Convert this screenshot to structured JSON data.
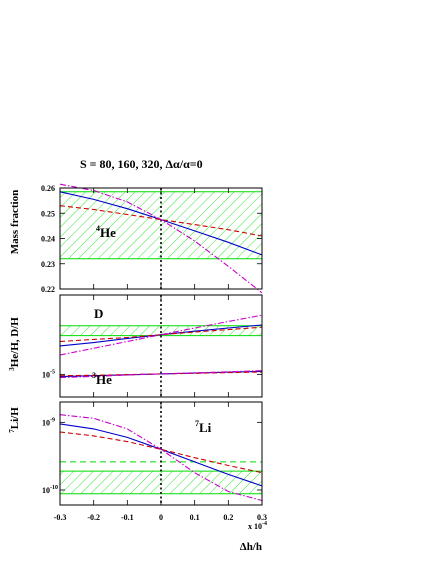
{
  "figure": {
    "title": "S = 80, 160, 320, Δα/α=0"
  },
  "shared_x": {
    "label": "Δh/h",
    "multiplier": "x 10",
    "multiplier_exp": "-4",
    "range": [
      -0.3,
      0.3
    ],
    "ticks": [
      -0.3,
      -0.2,
      -0.1,
      0,
      0.1,
      0.2,
      0.3
    ],
    "tick_labels": [
      "-0.3",
      "-0.2",
      "-0.1",
      "0",
      "0.1",
      "0.2",
      "0.3"
    ]
  },
  "colors": {
    "s80": "#0000cc",
    "s160": "#cc0000",
    "s320": "#cc00cc",
    "band": "#00dd00",
    "zero_line": "#000000"
  },
  "chart_data": [
    {
      "id": "helium4",
      "type": "line",
      "ylabel": "Mass fraction",
      "yscale": "linear",
      "ylim": [
        0.22,
        0.26
      ],
      "ticks": [
        0.22,
        0.23,
        0.24,
        0.25,
        0.26
      ],
      "tick_labels": [
        "0.22",
        "0.23",
        "0.24",
        "0.25",
        "0.26"
      ],
      "annotation": {
        "base": "He",
        "sup": "4"
      },
      "observed_band": [
        0.232,
        0.2585
      ],
      "x": [
        -0.3,
        -0.2,
        -0.1,
        0,
        0.1,
        0.2,
        0.3
      ],
      "series": [
        {
          "style": "solid",
          "color": "#0000cc",
          "values": [
            0.2585,
            0.2555,
            0.2518,
            0.2475,
            0.243,
            0.2385,
            0.2335
          ]
        },
        {
          "style": "dashed",
          "color": "#cc0000",
          "values": [
            0.253,
            0.2515,
            0.2495,
            0.2475,
            0.2455,
            0.2435,
            0.241
          ]
        },
        {
          "style": "dashdot",
          "color": "#cc00cc",
          "values": [
            0.2615,
            0.259,
            0.2545,
            0.2475,
            0.239,
            0.229,
            0.2185
          ]
        }
      ]
    },
    {
      "id": "deuterium-helium3",
      "type": "line",
      "ylabel": "He/H, D/H",
      "ylabel_sup": "3",
      "yscale": "log",
      "ylim": [
        6e-06,
        6e-05
      ],
      "ticks": [
        1e-05
      ],
      "tick_labels": [
        "10"
      ],
      "tick_label_exps": [
        "-5"
      ],
      "annotations": [
        {
          "base": "D",
          "sup": ""
        },
        {
          "base": "He",
          "sup": "3"
        }
      ],
      "observed_band": [
        2.4e-05,
        3e-05
      ],
      "x": [
        -0.3,
        -0.2,
        -0.1,
        0,
        0.1,
        0.2,
        0.3
      ],
      "series": [
        {
          "group": "D",
          "style": "solid",
          "color": "#0000cc",
          "values": [
            1.9e-05,
            2.05e-05,
            2.25e-05,
            2.45e-05,
            2.65e-05,
            2.85e-05,
            3.05e-05
          ]
        },
        {
          "group": "D",
          "style": "dashed",
          "color": "#cc0000",
          "values": [
            2.1e-05,
            2.2e-05,
            2.3e-05,
            2.45e-05,
            2.6e-05,
            2.75e-05,
            2.9e-05
          ]
        },
        {
          "group": "D",
          "style": "dashdot",
          "color": "#cc00cc",
          "values": [
            1.55e-05,
            1.8e-05,
            2.1e-05,
            2.45e-05,
            2.85e-05,
            3.3e-05,
            3.8e-05
          ]
        },
        {
          "group": "He3",
          "style": "solid",
          "color": "#0000cc",
          "values": [
            9.5e-06,
            9.7e-06,
            9.9e-06,
            1.01e-05,
            1.03e-05,
            1.05e-05,
            1.07e-05
          ]
        },
        {
          "group": "He3",
          "style": "dashed",
          "color": "#cc0000",
          "values": [
            9.7e-06,
            9.8e-06,
            9.95e-06,
            1.01e-05,
            1.025e-05,
            1.04e-05,
            1.055e-05
          ]
        },
        {
          "group": "He3",
          "style": "dashdot",
          "color": "#cc00cc",
          "values": [
            9.3e-06,
            9.55e-06,
            9.85e-06,
            1.01e-05,
            1.035e-05,
            1.06e-05,
            1.09e-05
          ]
        }
      ]
    },
    {
      "id": "lithium7",
      "type": "line",
      "ylabel": "Li/H",
      "ylabel_sup": "7",
      "yscale": "log",
      "ylim": [
        6e-11,
        2e-09
      ],
      "ticks": [
        1e-09,
        1e-10
      ],
      "tick_labels": [
        "10",
        "10"
      ],
      "tick_label_exps": [
        "-9",
        "-10"
      ],
      "annotation": {
        "base": "Li",
        "sup": "7"
      },
      "observed_band": [
        8.8e-11,
        1.9e-10
      ],
      "observed_center": 2.6e-10,
      "x": [
        -0.3,
        -0.2,
        -0.1,
        0,
        0.1,
        0.2,
        0.3
      ],
      "series": [
        {
          "style": "solid",
          "color": "#0000cc",
          "values": [
            9.5e-10,
            8e-10,
            6e-10,
            4e-10,
            2.6e-10,
            1.7e-10,
            1.15e-10
          ]
        },
        {
          "style": "dashed",
          "color": "#cc0000",
          "values": [
            7.2e-10,
            6.3e-10,
            5.2e-10,
            4e-10,
            3e-10,
            2.3e-10,
            1.8e-10
          ]
        },
        {
          "style": "dashdot",
          "color": "#cc00cc",
          "values": [
            1.3e-09,
            1.15e-09,
            8e-10,
            4e-10,
            1.8e-10,
            9.5e-11,
            7e-11
          ]
        }
      ]
    }
  ]
}
